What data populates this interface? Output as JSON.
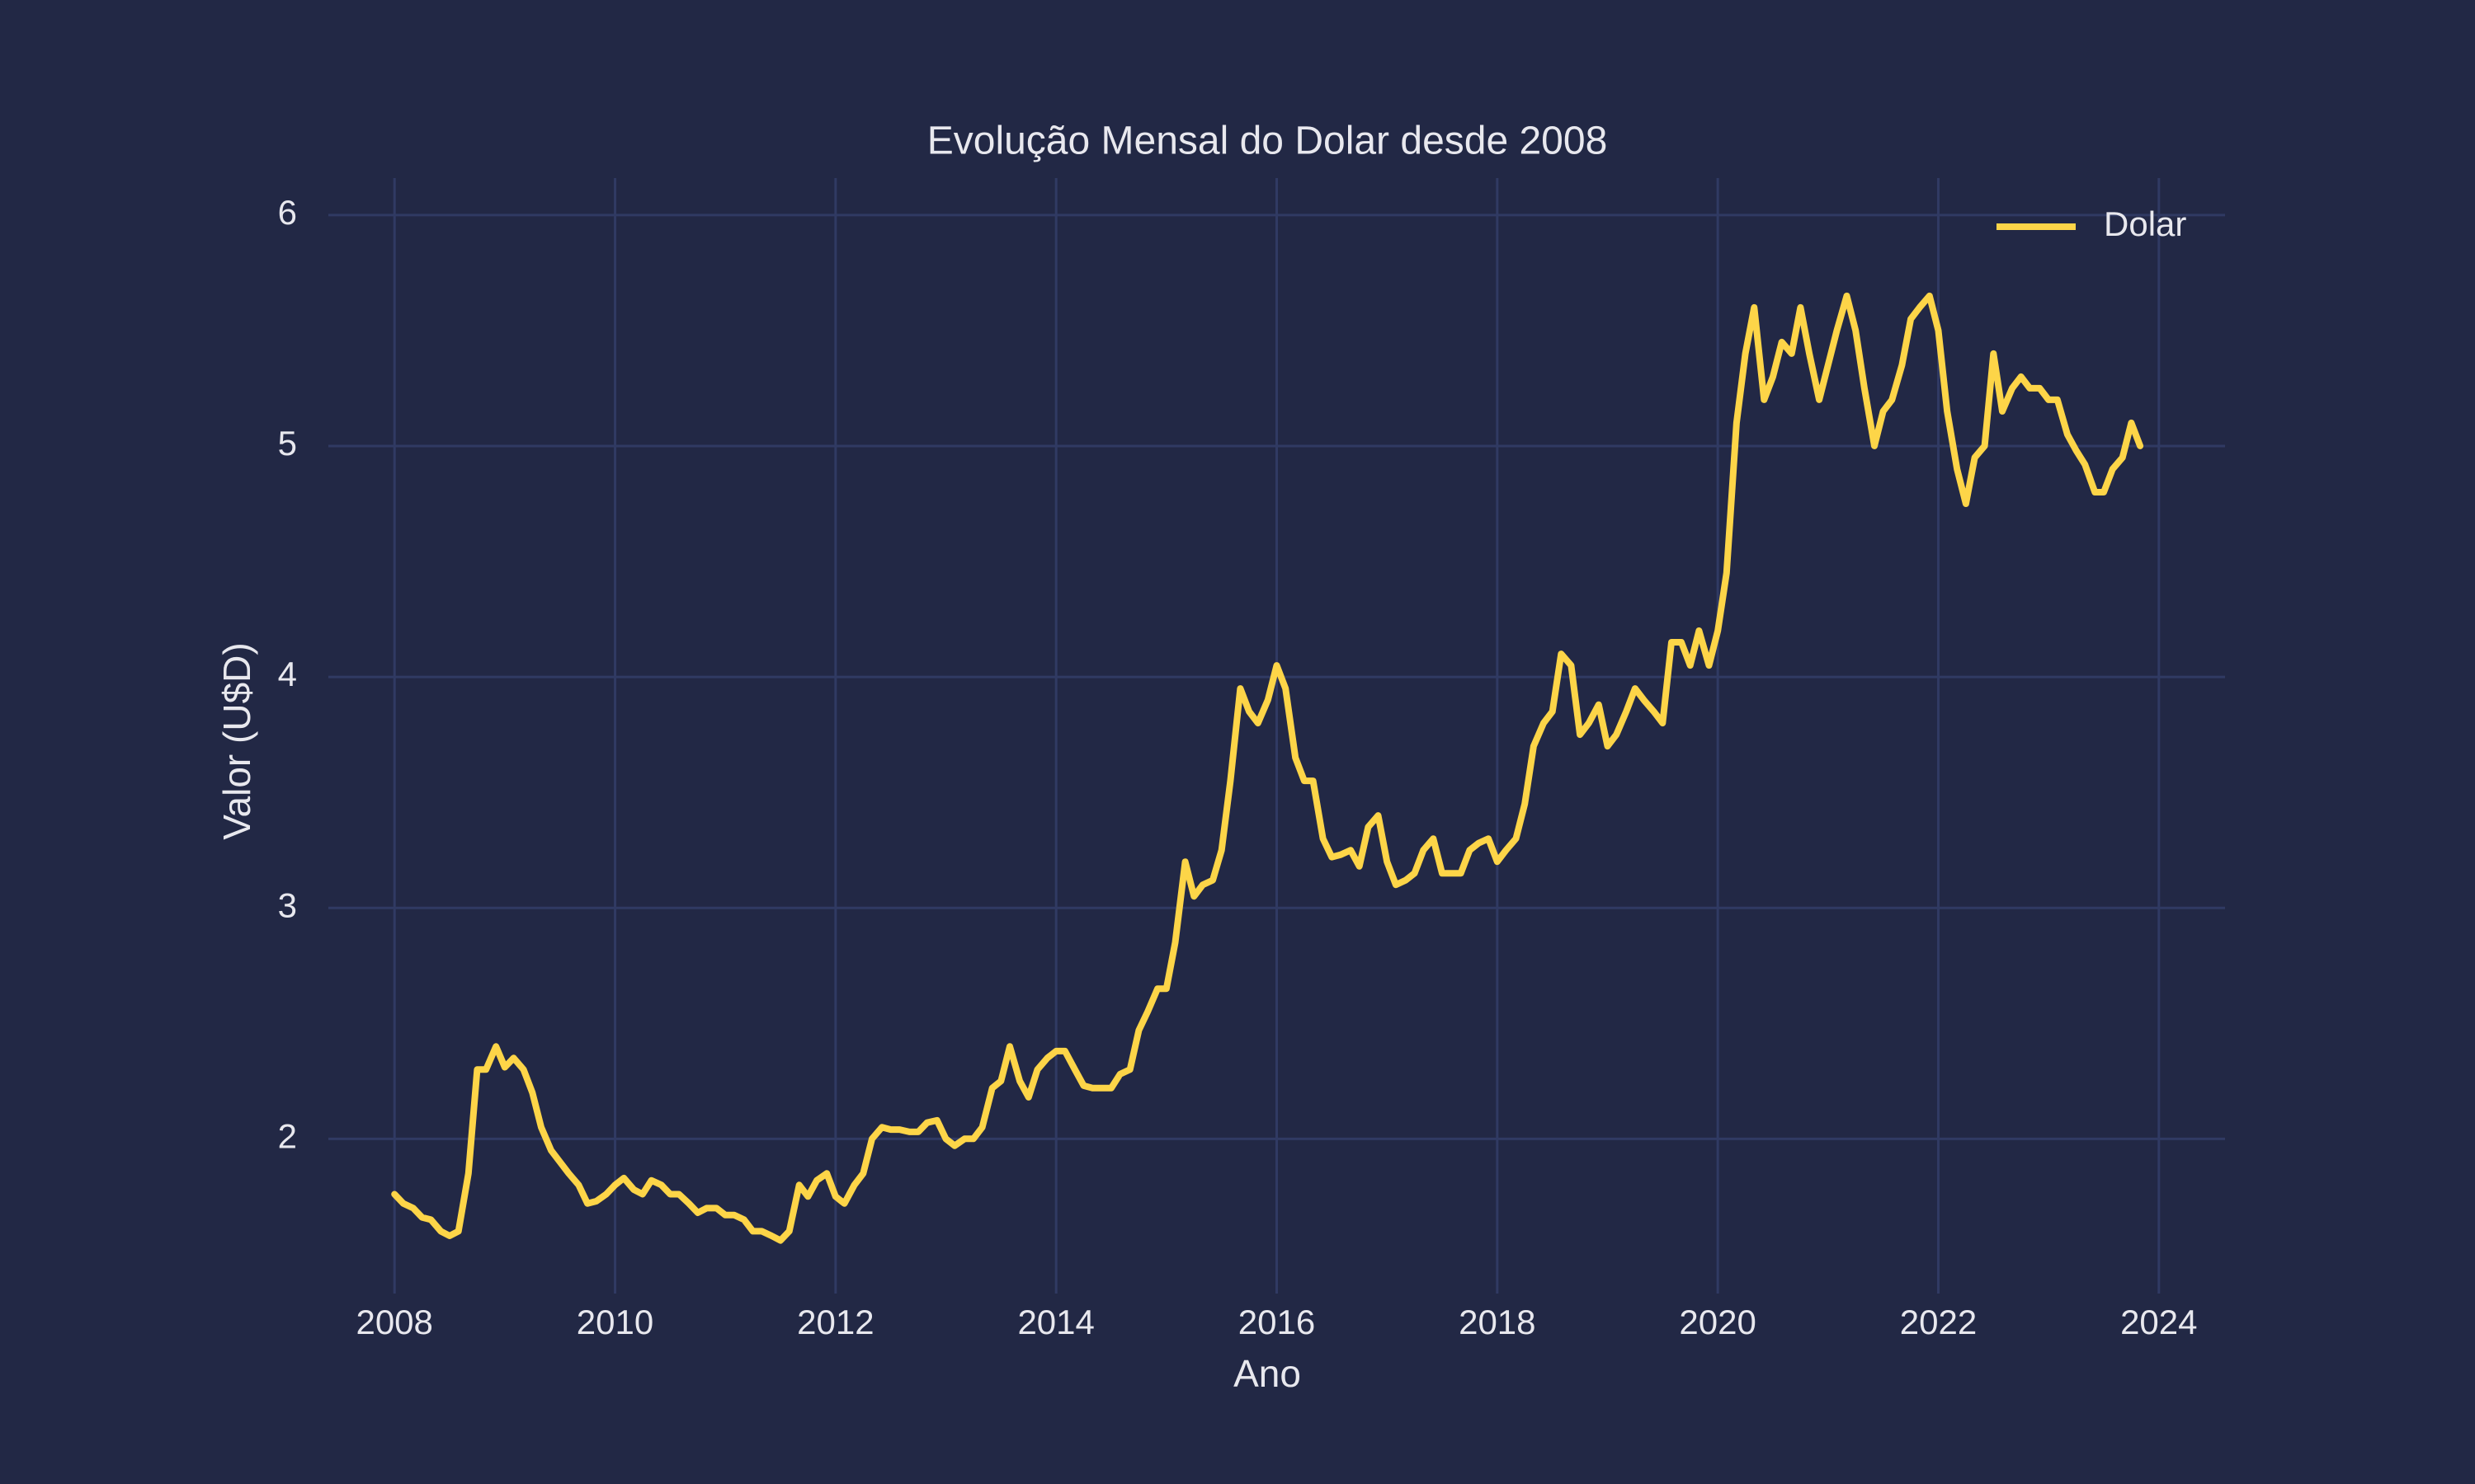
{
  "chart_data": {
    "type": "line",
    "title": "Evolução Mensal do Dolar desde 2008",
    "x_label": "Ano",
    "y_label": "Valor (U$D)",
    "xlim": [
      2007.4,
      2024.6
    ],
    "xticks": [
      2008,
      2010,
      2012,
      2014,
      2016,
      2018,
      2020,
      2022,
      2024
    ],
    "ylim": [
      1.33,
      6.16
    ],
    "yticks": [
      2,
      3,
      4,
      5,
      6
    ],
    "grid": true,
    "legend": "upper right",
    "x": [
      2008.0,
      2008.08,
      2008.17,
      2008.25,
      2008.33,
      2008.42,
      2008.5,
      2008.58,
      2008.67,
      2008.75,
      2008.83,
      2008.92,
      2009.0,
      2009.08,
      2009.17,
      2009.25,
      2009.33,
      2009.42,
      2009.5,
      2009.58,
      2009.67,
      2009.75,
      2009.83,
      2009.92,
      2010.0,
      2010.08,
      2010.17,
      2010.25,
      2010.33,
      2010.42,
      2010.5,
      2010.58,
      2010.67,
      2010.75,
      2010.83,
      2010.92,
      2011.0,
      2011.08,
      2011.17,
      2011.25,
      2011.33,
      2011.42,
      2011.5,
      2011.58,
      2011.67,
      2011.75,
      2011.83,
      2011.92,
      2012.0,
      2012.08,
      2012.17,
      2012.25,
      2012.33,
      2012.42,
      2012.5,
      2012.58,
      2012.67,
      2012.75,
      2012.83,
      2012.92,
      2013.0,
      2013.08,
      2013.17,
      2013.25,
      2013.33,
      2013.42,
      2013.5,
      2013.58,
      2013.67,
      2013.75,
      2013.83,
      2013.92,
      2014.0,
      2014.08,
      2014.17,
      2014.25,
      2014.33,
      2014.42,
      2014.5,
      2014.58,
      2014.67,
      2014.75,
      2014.83,
      2014.92,
      2015.0,
      2015.08,
      2015.17,
      2015.25,
      2015.33,
      2015.42,
      2015.5,
      2015.58,
      2015.67,
      2015.75,
      2015.83,
      2015.92,
      2016.0,
      2016.08,
      2016.17,
      2016.25,
      2016.33,
      2016.42,
      2016.5,
      2016.58,
      2016.67,
      2016.75,
      2016.83,
      2016.92,
      2017.0,
      2017.08,
      2017.17,
      2017.25,
      2017.33,
      2017.42,
      2017.5,
      2017.58,
      2017.67,
      2017.75,
      2017.83,
      2017.92,
      2018.0,
      2018.08,
      2018.17,
      2018.25,
      2018.33,
      2018.42,
      2018.5,
      2018.58,
      2018.67,
      2018.75,
      2018.83,
      2018.92,
      2019.0,
      2019.08,
      2019.17,
      2019.25,
      2019.33,
      2019.42,
      2019.5,
      2019.58,
      2019.67,
      2019.75,
      2019.83,
      2019.92,
      2020.0,
      2020.08,
      2020.17,
      2020.25,
      2020.33,
      2020.42,
      2020.5,
      2020.58,
      2020.67,
      2020.75,
      2020.83,
      2020.92,
      2021.0,
      2021.08,
      2021.17,
      2021.25,
      2021.33,
      2021.42,
      2021.5,
      2021.58,
      2021.67,
      2021.75,
      2021.83,
      2021.92,
      2022.0,
      2022.08,
      2022.17,
      2022.25,
      2022.33,
      2022.42,
      2022.5,
      2022.58,
      2022.67,
      2022.75,
      2022.83,
      2022.92,
      2023.0,
      2023.08,
      2023.17,
      2023.25,
      2023.33,
      2023.42,
      2023.5,
      2023.58,
      2023.67,
      2023.75,
      2023.83
    ],
    "series": [
      {
        "name": "Dolar",
        "color": "#fdd548",
        "values": [
          1.76,
          1.72,
          1.7,
          1.66,
          1.65,
          1.6,
          1.58,
          1.6,
          1.85,
          2.3,
          2.3,
          2.4,
          2.31,
          2.35,
          2.3,
          2.2,
          2.05,
          1.95,
          1.9,
          1.85,
          1.8,
          1.72,
          1.73,
          1.76,
          1.8,
          1.83,
          1.78,
          1.76,
          1.82,
          1.8,
          1.76,
          1.76,
          1.72,
          1.68,
          1.7,
          1.7,
          1.67,
          1.67,
          1.65,
          1.6,
          1.6,
          1.58,
          1.56,
          1.6,
          1.8,
          1.75,
          1.82,
          1.85,
          1.75,
          1.72,
          1.8,
          1.85,
          2.0,
          2.05,
          2.04,
          2.04,
          2.03,
          2.03,
          2.07,
          2.08,
          2.0,
          1.97,
          2.0,
          2.0,
          2.05,
          2.22,
          2.25,
          2.4,
          2.25,
          2.18,
          2.3,
          2.35,
          2.38,
          2.38,
          2.3,
          2.23,
          2.22,
          2.22,
          2.22,
          2.28,
          2.3,
          2.47,
          2.55,
          2.65,
          2.65,
          2.85,
          3.2,
          3.05,
          3.1,
          3.12,
          3.25,
          3.55,
          3.95,
          3.85,
          3.8,
          3.9,
          4.05,
          3.95,
          3.65,
          3.55,
          3.55,
          3.3,
          3.22,
          3.23,
          3.25,
          3.18,
          3.35,
          3.4,
          3.2,
          3.1,
          3.12,
          3.15,
          3.25,
          3.3,
          3.15,
          3.15,
          3.15,
          3.25,
          3.28,
          3.3,
          3.2,
          3.25,
          3.3,
          3.45,
          3.7,
          3.8,
          3.85,
          4.1,
          4.05,
          3.75,
          3.8,
          3.88,
          3.7,
          3.75,
          3.85,
          3.95,
          3.9,
          3.85,
          3.8,
          4.15,
          4.15,
          4.05,
          4.2,
          4.05,
          4.2,
          4.45,
          5.1,
          5.4,
          5.6,
          5.2,
          5.3,
          5.45,
          5.4,
          5.6,
          5.4,
          5.2,
          5.35,
          5.5,
          5.65,
          5.5,
          5.25,
          5.0,
          5.15,
          5.2,
          5.35,
          5.55,
          5.6,
          5.65,
          5.5,
          5.15,
          4.9,
          4.75,
          4.95,
          5.0,
          5.4,
          5.15,
          5.25,
          5.3,
          5.25,
          5.25,
          5.2,
          5.2,
          5.05,
          4.98,
          4.92,
          4.8,
          4.8,
          4.9,
          4.95,
          5.1,
          5.0
        ]
      }
    ]
  }
}
